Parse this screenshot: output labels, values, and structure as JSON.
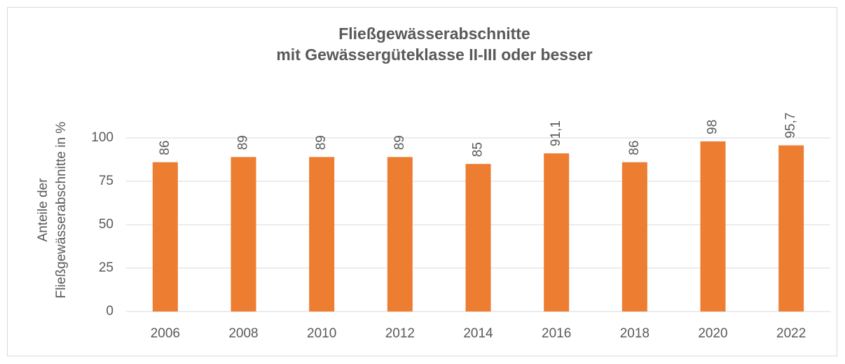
{
  "chart_data": {
    "type": "bar",
    "title": [
      "Fließgewässerabschnitte",
      "mit Gewässergüteklasse II-III oder besser"
    ],
    "ylabel": [
      "Anteile der",
      "Fließgewässerabschnitte in %"
    ],
    "categories": [
      "2006",
      "2008",
      "2010",
      "2012",
      "2014",
      "2016",
      "2018",
      "2020",
      "2022"
    ],
    "values": [
      86,
      89,
      89,
      89,
      85,
      91.1,
      86,
      98,
      95.7
    ],
    "value_labels": [
      "86",
      "89",
      "89",
      "89",
      "85",
      "91,1",
      "86",
      "98",
      "95,7"
    ],
    "color": "#ed7d31",
    "ylim": [
      0,
      100
    ],
    "yticks": [
      0,
      25,
      50,
      75,
      100
    ],
    "grid": true
  }
}
